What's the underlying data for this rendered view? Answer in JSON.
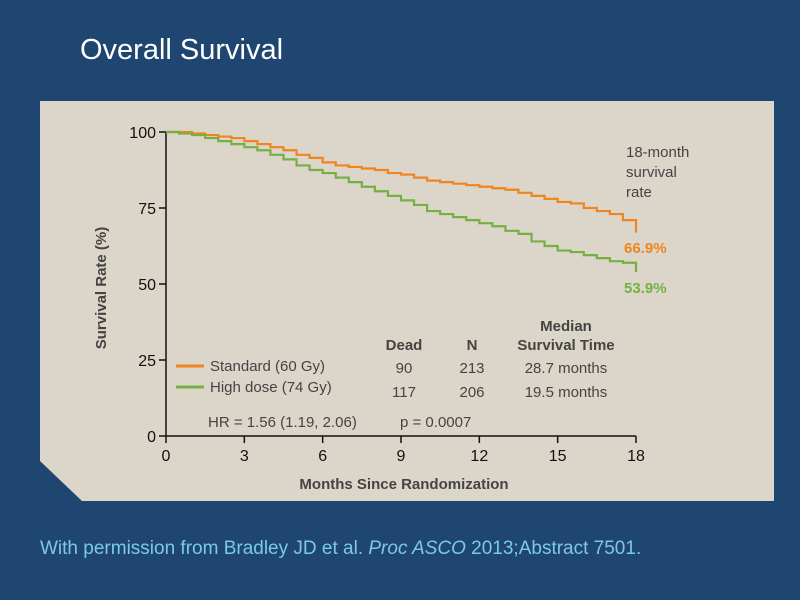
{
  "slide": {
    "title": "Overall Survival",
    "citation": {
      "prefix": "With permission from Bradley JD et al. ",
      "journal": "Proc ASCO",
      "suffix": " 2013;Abstract 7501."
    }
  },
  "colors": {
    "background": "#1f4670",
    "panel": "#dbd6c9",
    "standard": "#f0841f",
    "high_dose": "#76b043"
  },
  "chart_data": {
    "type": "line",
    "title": "",
    "xlabel": "Months Since Randomization",
    "ylabel": "Survival Rate (%)",
    "xlim": [
      0,
      18
    ],
    "ylim": [
      0,
      100
    ],
    "xticks": [
      0,
      3,
      6,
      9,
      12,
      15,
      18
    ],
    "yticks": [
      0,
      25,
      50,
      75,
      100
    ],
    "grid": false,
    "series": [
      {
        "name": "Standard (60 Gy)",
        "color": "#f0841f",
        "x": [
          0,
          0.5,
          1,
          1.5,
          2,
          2.5,
          3,
          3.5,
          4,
          4.5,
          5,
          5.5,
          6,
          6.5,
          7,
          7.5,
          8,
          8.5,
          9,
          9.5,
          10,
          10.5,
          11,
          11.5,
          12,
          12.5,
          13,
          13.5,
          14,
          14.5,
          15,
          15.5,
          16,
          16.5,
          17,
          17.5,
          18
        ],
        "y": [
          100,
          100,
          99.5,
          99,
          98.5,
          98,
          97,
          96,
          95,
          94,
          92.5,
          91.5,
          90,
          89,
          88.5,
          88,
          87.5,
          86.5,
          86,
          85,
          84,
          83.5,
          83,
          82.5,
          82,
          81.5,
          81,
          80,
          79,
          78,
          77,
          76.5,
          75,
          74,
          73,
          71,
          66.9
        ]
      },
      {
        "name": "High dose (74 Gy)",
        "color": "#76b043",
        "x": [
          0,
          0.5,
          1,
          1.5,
          2,
          2.5,
          3,
          3.5,
          4,
          4.5,
          5,
          5.5,
          6,
          6.5,
          7,
          7.5,
          8,
          8.5,
          9,
          9.5,
          10,
          10.5,
          11,
          11.5,
          12,
          12.5,
          13,
          13.5,
          14,
          14.5,
          15,
          15.5,
          16,
          16.5,
          17,
          17.5,
          18
        ],
        "y": [
          100,
          99.5,
          99,
          98,
          97,
          96,
          95,
          94,
          92.5,
          91,
          89,
          87.5,
          86.5,
          85,
          83.5,
          82,
          80.5,
          79,
          77.5,
          76,
          74,
          73,
          72,
          71,
          70,
          69,
          67.5,
          66.5,
          64,
          62.5,
          61,
          60.5,
          59.5,
          58.5,
          57.5,
          57,
          53.9
        ]
      }
    ],
    "annotations": {
      "header_line1": "18-month",
      "header_line2": "survival",
      "header_line3": "rate",
      "standard_rate": "66.9%",
      "high_dose_rate": "53.9%"
    },
    "table": {
      "col_dead": "Dead",
      "col_n": "N",
      "col_median_line1": "Median",
      "col_median_line2": "Survival Time",
      "rows": [
        {
          "label": "Standard (60 Gy)",
          "dead": "90",
          "n": "213",
          "median": "28.7 months"
        },
        {
          "label": "High dose (74 Gy)",
          "dead": "117",
          "n": "206",
          "median": "19.5 months"
        }
      ],
      "hr": "HR = 1.56 (1.19, 2.06)",
      "p": "p = 0.0007"
    }
  }
}
